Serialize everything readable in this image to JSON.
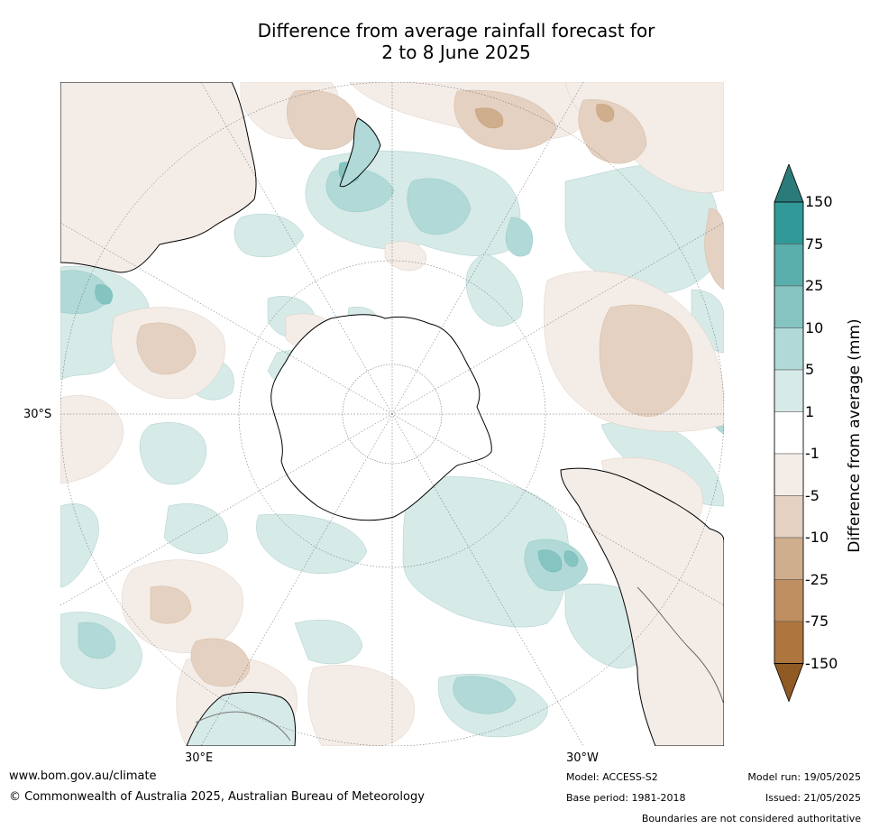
{
  "title": {
    "line1": "Difference from average rainfall forecast for",
    "line2": "2 to 8 June 2025"
  },
  "map": {
    "projection": "south-polar stereographic",
    "grid_labels": {
      "lat_left": "30°S",
      "lon_bottom_left": "30°E",
      "lon_bottom_right": "30°W"
    },
    "landmasses": [
      "Antarctica",
      "Australia",
      "New Zealand",
      "South America",
      "Africa"
    ]
  },
  "colorbar": {
    "title": "Difference from average (mm)",
    "ticks": [
      "150",
      "75",
      "25",
      "10",
      "5",
      "1",
      "-1",
      "-5",
      "-10",
      "-25",
      "-75",
      "-150"
    ],
    "colors": {
      "above_150": "#2a7b7a",
      "75_150": "#319a98",
      "25_75": "#5aaeac",
      "10_25": "#86c4c2",
      "5_10": "#b0d9d7",
      "1_5": "#d6eae8",
      "neutral": "#ffffff",
      "m5_m1": "#f4ece7",
      "m10_m5": "#e4d1c2",
      "m25_m10": "#cfae8d",
      "m75_m25": "#bf8f62",
      "m150_m75": "#ae763e",
      "below_m150": "#8f5a24"
    }
  },
  "footer": {
    "website": "www.bom.gov.au/climate",
    "copyright": "© Commonwealth of Australia 2025, Australian Bureau of Meteorology",
    "model": "Model: ACCESS-S2",
    "base_period": "Base period: 1981-2018",
    "model_run": "Model run: 19/05/2025",
    "issued": "Issued: 21/05/2025",
    "disclaimer": "Boundaries are not considered authoritative"
  }
}
